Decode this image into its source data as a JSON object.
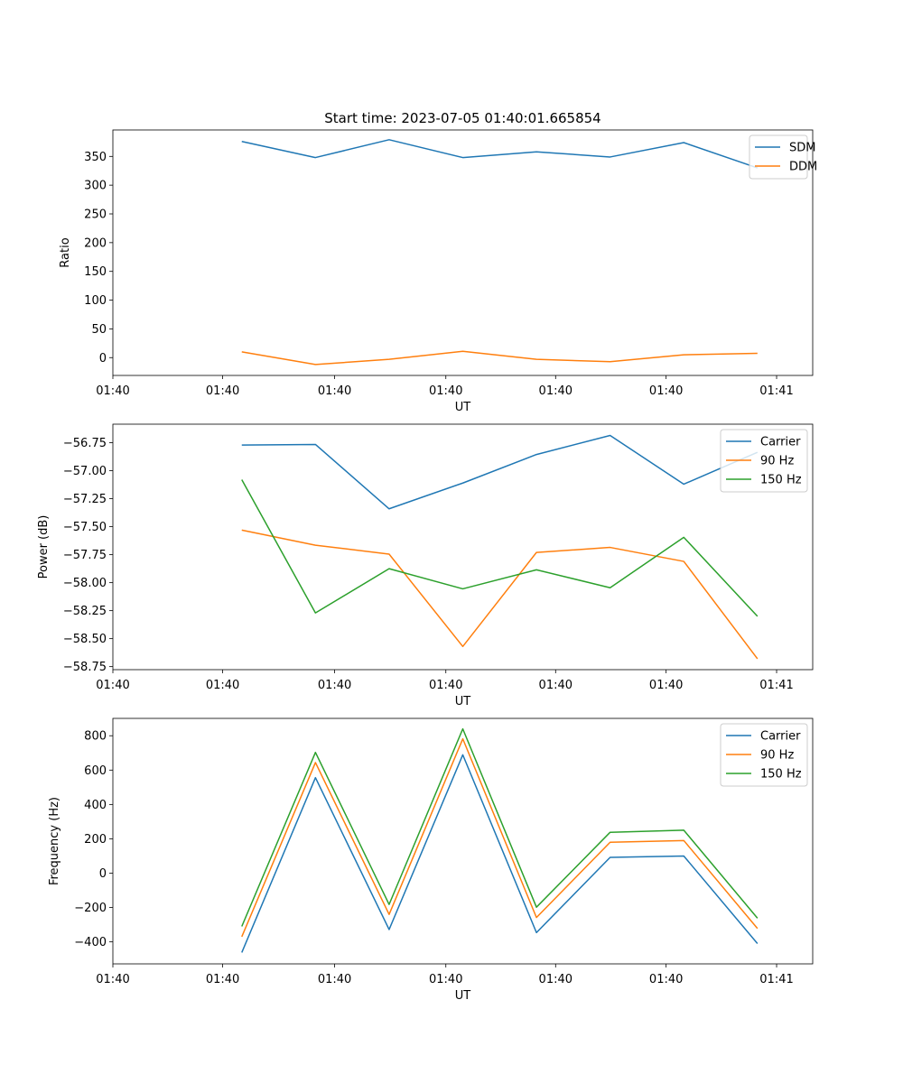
{
  "title": "Start time: 2023-07-05 01:40:01.665854",
  "colors": {
    "c0": "#1f77b4",
    "c1": "#ff7f0e",
    "c2": "#2ca02c"
  },
  "x_tick_labels": [
    "01:40",
    "01:40",
    "01:40",
    "01:40",
    "01:40",
    "01:40",
    "01:41"
  ],
  "chart_data": [
    {
      "type": "line",
      "title": "Start time: 2023-07-05 01:40:01.665854",
      "xlabel": "UT",
      "ylabel": "Ratio",
      "x": [
        1,
        2,
        3,
        4,
        5,
        6,
        7,
        8
      ],
      "xlim": [
        -0.75,
        8.75
      ],
      "ylim": [
        -31,
        396
      ],
      "yticks": [
        0,
        50,
        100,
        150,
        200,
        250,
        300,
        350
      ],
      "xticks": [
        -0.75,
        0.74,
        2.26,
        3.77,
        5.26,
        6.76,
        8.26
      ],
      "legend": "top-right",
      "series": [
        {
          "name": "SDM",
          "color": "#1f77b4",
          "values": [
            376,
            348,
            379,
            348,
            358,
            349,
            374,
            330
          ]
        },
        {
          "name": "DDM",
          "color": "#ff7f0e",
          "values": [
            10,
            -12,
            -3,
            11,
            -3,
            -7,
            5,
            7.5
          ]
        }
      ]
    },
    {
      "type": "line",
      "title": "",
      "xlabel": "UT",
      "ylabel": "Power (dB)",
      "x": [
        1,
        2,
        3,
        4,
        5,
        6,
        7,
        8
      ],
      "xlim": [
        -0.75,
        8.75
      ],
      "ylim": [
        -58.777,
        -56.584
      ],
      "yticks": [
        -58.75,
        -58.5,
        -58.25,
        -58.0,
        -57.75,
        -57.5,
        -57.25,
        -57.0,
        -56.75
      ],
      "xticks": [
        -0.75,
        0.74,
        2.26,
        3.77,
        5.26,
        6.76,
        8.26
      ],
      "legend": "top-right",
      "series": [
        {
          "name": "Carrier",
          "color": "#1f77b4",
          "values": [
            -56.77,
            -56.765,
            -57.34,
            -57.11,
            -56.855,
            -56.685,
            -57.12,
            -56.835
          ]
        },
        {
          "name": "90 Hz",
          "color": "#ff7f0e",
          "values": [
            -57.53,
            -57.665,
            -57.745,
            -58.57,
            -57.73,
            -57.685,
            -57.81,
            -58.68
          ]
        },
        {
          "name": "150 Hz",
          "color": "#2ca02c",
          "values": [
            -57.08,
            -58.27,
            -57.875,
            -58.055,
            -57.885,
            -58.045,
            -57.595,
            -58.3
          ]
        }
      ]
    },
    {
      "type": "line",
      "title": "",
      "xlabel": "UT",
      "ylabel": "Frequency (Hz)",
      "x": [
        1,
        2,
        3,
        4,
        5,
        6,
        7,
        8
      ],
      "xlim": [
        -0.75,
        8.75
      ],
      "ylim": [
        -528,
        901
      ],
      "yticks": [
        -400,
        -200,
        0,
        200,
        400,
        600,
        800
      ],
      "xticks": [
        -0.75,
        0.74,
        2.26,
        3.77,
        5.26,
        6.76,
        8.26
      ],
      "legend": "top-right",
      "series": [
        {
          "name": "Carrier",
          "color": "#1f77b4",
          "values": [
            -462,
            556,
            -328,
            689,
            -346,
            92,
            100,
            -410
          ]
        },
        {
          "name": "90 Hz",
          "color": "#ff7f0e",
          "values": [
            -370,
            644,
            -240,
            782,
            -258,
            180,
            190,
            -322
          ]
        },
        {
          "name": "150 Hz",
          "color": "#2ca02c",
          "values": [
            -310,
            703,
            -182,
            840,
            -198,
            238,
            250,
            -262
          ]
        }
      ]
    }
  ]
}
